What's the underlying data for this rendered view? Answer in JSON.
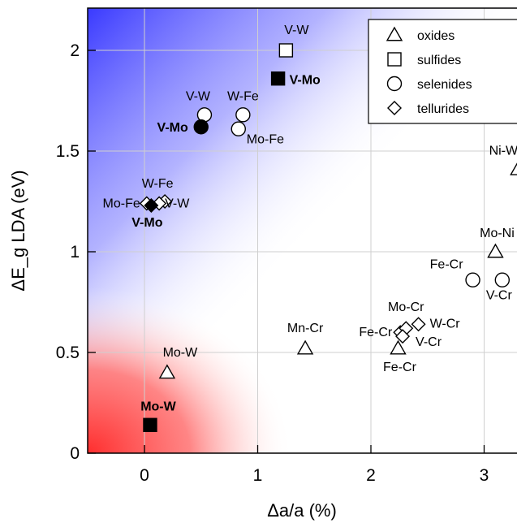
{
  "chart_data": {
    "type": "scatter",
    "xlabel": "Δa/a (%)",
    "ylabel": "ΔE_g LDA (eV)",
    "xlim": [
      -0.5,
      3.15
    ],
    "ylim": [
      0,
      2.2
    ],
    "xticks": [
      0,
      1,
      2,
      3
    ],
    "yticks": [
      0,
      0.5,
      1,
      1.5,
      2
    ],
    "grid": true,
    "legend": {
      "placement": "top-right",
      "entries": [
        {
          "marker": "triangle",
          "label": "oxides"
        },
        {
          "marker": "square",
          "label": "sulfides"
        },
        {
          "marker": "circle",
          "label": "selenides"
        },
        {
          "marker": "diamond",
          "label": "tellurides"
        }
      ]
    },
    "background": {
      "top_left": "#3a3aff",
      "bottom_left": "#ff3030"
    },
    "series": [
      {
        "name": "oxides",
        "marker": "triangle",
        "points": [
          {
            "x": 0.2,
            "y": 0.4,
            "label": "Mo-W",
            "filled": false
          },
          {
            "x": 1.42,
            "y": 0.52,
            "label": "Mn-Cr",
            "filled": false
          },
          {
            "x": 2.24,
            "y": 0.52,
            "label": "Fe-Cr",
            "filled": false
          },
          {
            "x": 3.1,
            "y": 1.0,
            "label": "Mo-Ni",
            "filled": false
          },
          {
            "x": 3.3,
            "y": 1.41,
            "label": "Ni-W",
            "filled": false
          }
        ]
      },
      {
        "name": "sulfides",
        "marker": "square",
        "points": [
          {
            "x": 1.25,
            "y": 2.0,
            "label": "V-W",
            "filled": false
          },
          {
            "x": 1.18,
            "y": 1.86,
            "label": "V-Mo",
            "filled": true
          },
          {
            "x": 0.05,
            "y": 0.14,
            "label": "Mo-W",
            "filled": true
          }
        ]
      },
      {
        "name": "selenides",
        "marker": "circle",
        "points": [
          {
            "x": 0.53,
            "y": 1.68,
            "label": "V-W",
            "filled": false
          },
          {
            "x": 0.5,
            "y": 1.62,
            "label": "V-Mo",
            "filled": true
          },
          {
            "x": 0.87,
            "y": 1.68,
            "label": "W-Fe",
            "filled": false
          },
          {
            "x": 0.83,
            "y": 1.61,
            "label": "Mo-Fe",
            "filled": false
          },
          {
            "x": 2.9,
            "y": 0.86,
            "label": "Fe-Cr",
            "filled": false
          },
          {
            "x": 3.16,
            "y": 0.86,
            "label": "V-Cr",
            "filled": false
          }
        ]
      },
      {
        "name": "tellurides",
        "marker": "diamond",
        "points": [
          {
            "x": 0.02,
            "y": 1.24,
            "label": "Mo-Fe",
            "filled": false
          },
          {
            "x": 0.18,
            "y": 1.25,
            "label": "W-Fe",
            "filled": false
          },
          {
            "x": 0.13,
            "y": 1.24,
            "label": "V-W",
            "filled": false
          },
          {
            "x": 0.06,
            "y": 1.23,
            "label": "V-Mo",
            "filled": true
          },
          {
            "x": 2.26,
            "y": 0.6,
            "label": "Fe-Cr",
            "filled": false
          },
          {
            "x": 2.31,
            "y": 0.62,
            "label": "Mo-Cr",
            "filled": false
          },
          {
            "x": 2.42,
            "y": 0.64,
            "label": "W-Cr",
            "filled": false
          },
          {
            "x": 2.28,
            "y": 0.58,
            "label": "V-Cr",
            "filled": false
          }
        ]
      }
    ]
  }
}
